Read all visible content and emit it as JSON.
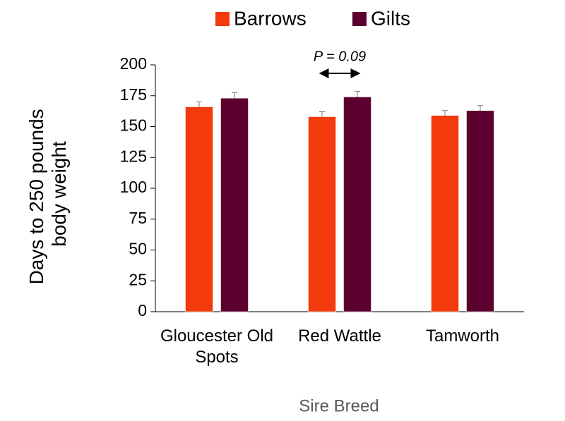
{
  "chart_data": {
    "type": "bar",
    "ylabel": [
      "Days to 250 pounds",
      "body weight"
    ],
    "xlabel": "Sire Breed",
    "annotation": "P = 0.09",
    "categories": [
      "Gloucester Old Spots",
      "Red Wattle",
      "Tamworth"
    ],
    "series": [
      {
        "name": "Barrows",
        "color": "#f23a0c",
        "values": [
          166,
          158,
          159
        ],
        "errors": [
          4,
          4,
          4
        ]
      },
      {
        "name": "Gilts",
        "color": "#5c0030",
        "values": [
          173,
          174,
          163
        ],
        "errors": [
          4.5,
          4.5,
          4
        ]
      }
    ],
    "ylim": [
      0,
      200
    ],
    "yticks": [
      0,
      25,
      50,
      75,
      100,
      125,
      150,
      175,
      200
    ],
    "grid": false,
    "legend": "top"
  }
}
